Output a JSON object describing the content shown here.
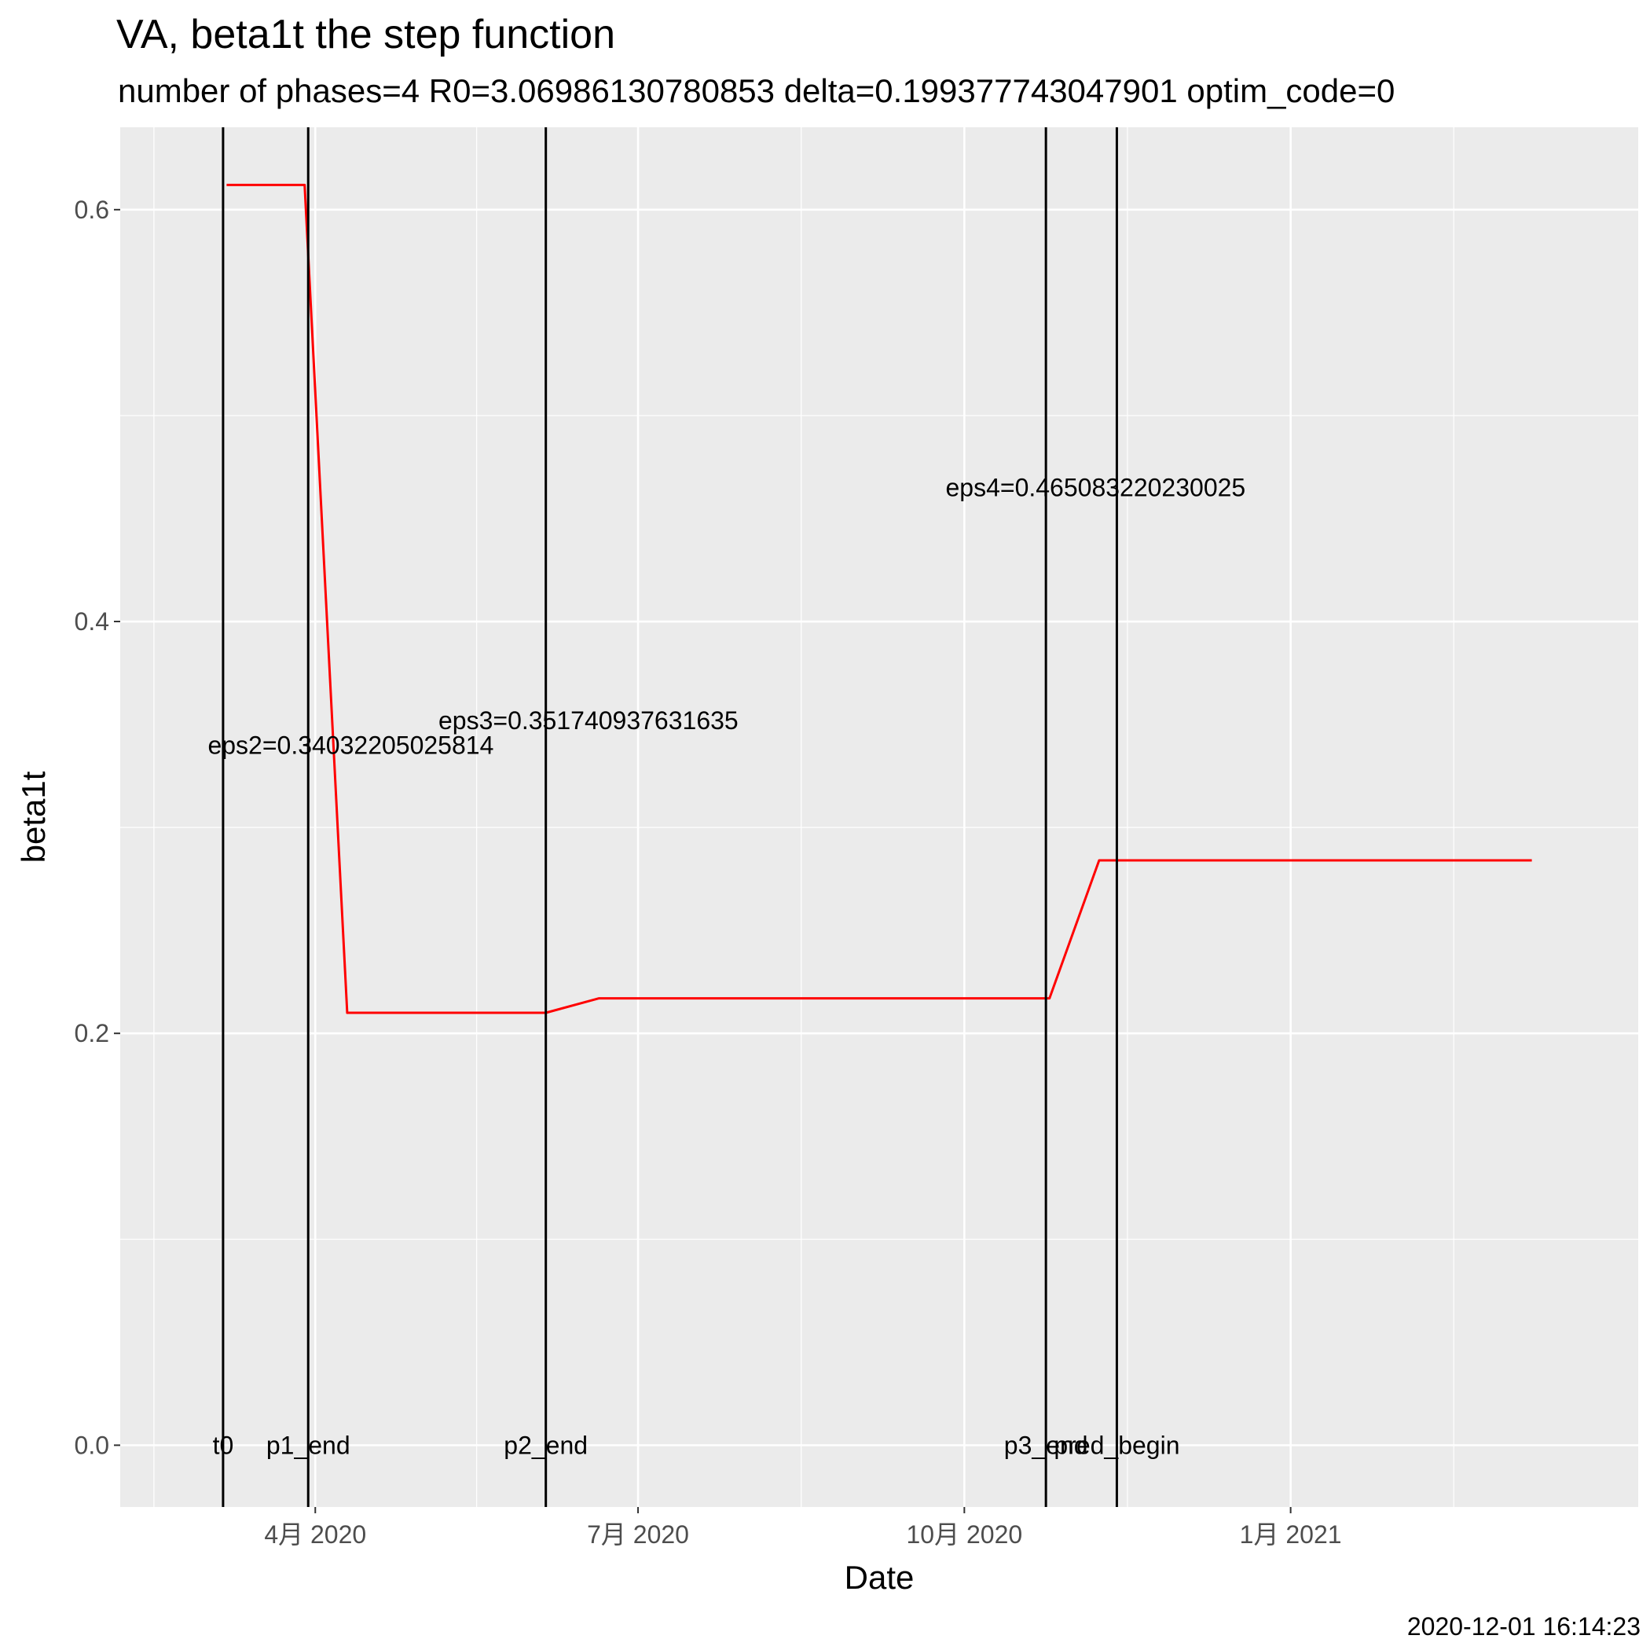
{
  "chart_data": {
    "type": "line",
    "title": "VA, beta1t the step function",
    "subtitle": "number of phases=4   R0=3.06986130780853   delta=0.199377743047901   optim_code=0",
    "xlabel": "Date",
    "ylabel": "beta1t",
    "caption": "2020-12-01 16:14:23",
    "x_ticks": [
      {
        "date": "2020-04-01",
        "label": "4月 2020"
      },
      {
        "date": "2020-07-01",
        "label": "7月 2020"
      },
      {
        "date": "2020-10-01",
        "label": "10月 2020"
      },
      {
        "date": "2021-01-01",
        "label": "1月 2021"
      }
    ],
    "xlim": [
      "2020-02-06",
      "2021-04-09"
    ],
    "ylim": [
      -0.03,
      0.64
    ],
    "y_ticks": [
      0.0,
      0.2,
      0.4,
      0.6
    ],
    "y_tick_labels": [
      "0.0",
      "0.2",
      "0.4",
      "0.6"
    ],
    "grid": true,
    "series": [
      {
        "color": "#ff0000",
        "points": [
          {
            "x": "2020-03-07",
            "y": 0.612
          },
          {
            "x": "2020-03-29",
            "y": 0.612
          },
          {
            "x": "2020-04-10",
            "y": 0.21
          },
          {
            "x": "2020-06-05",
            "y": 0.21
          },
          {
            "x": "2020-06-20",
            "y": 0.217
          },
          {
            "x": "2020-10-25",
            "y": 0.217
          },
          {
            "x": "2020-11-08",
            "y": 0.284
          },
          {
            "x": "2021-03-10",
            "y": 0.284
          }
        ]
      }
    ],
    "vlines": [
      {
        "x": "2020-03-06",
        "label": "t0"
      },
      {
        "x": "2020-03-30",
        "label": "p1_end"
      },
      {
        "x": "2020-06-05",
        "label": "p2_end"
      },
      {
        "x": "2020-10-24",
        "label": "p3_end"
      },
      {
        "x": "2020-11-13",
        "label": "pred_begin"
      }
    ],
    "annotations": [
      {
        "text": "eps2=0.34032205025814",
        "x": "2020-04-11",
        "y": 0.34
      },
      {
        "text": "eps3=0.351740937631635",
        "x": "2020-06-17",
        "y": 0.352
      },
      {
        "text": "eps4=0.465083220230025",
        "x": "2020-11-07",
        "y": 0.465
      }
    ]
  }
}
